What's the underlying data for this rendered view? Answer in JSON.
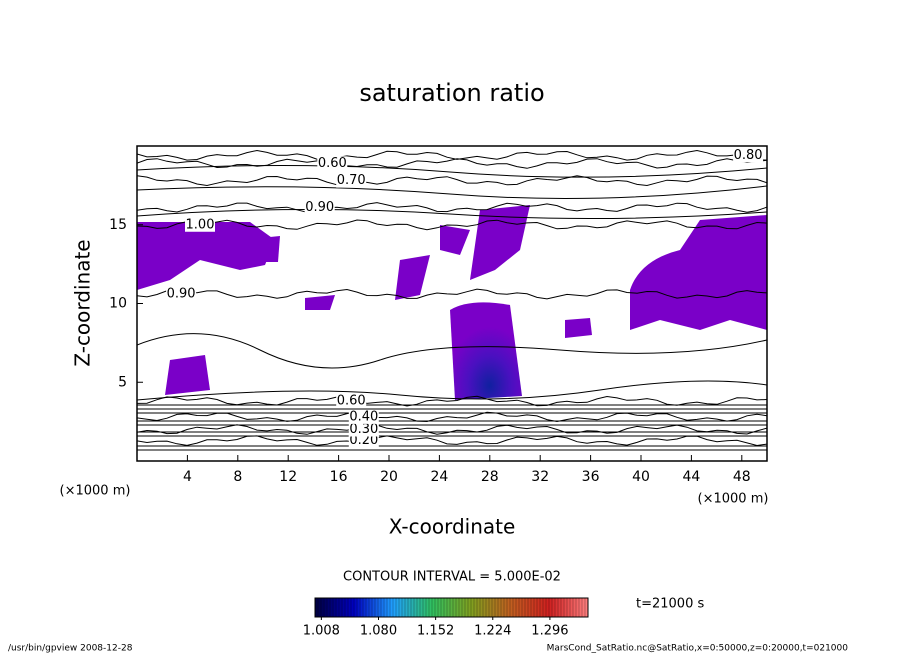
{
  "chart_data": {
    "type": "contour",
    "title": "saturation ratio",
    "xlabel": "X-coordinate",
    "ylabel": "Z-coordinate",
    "xunit": "(×1000 m)",
    "yunit": "(×1000 m)",
    "xlim": [
      0,
      50
    ],
    "xticks": [
      4,
      8,
      12,
      16,
      20,
      24,
      28,
      32,
      36,
      40,
      44,
      48
    ],
    "ylim": [
      0,
      20
    ],
    "yticks": [
      5,
      10,
      15
    ],
    "contour_interval": "CONTOUR INTERVAL = 5.000E-02",
    "fill_color": "#7a00c8",
    "contours": [
      {
        "level": 0.2,
        "label": "0.20",
        "x": 18,
        "z": 1.3
      },
      {
        "level": 0.3,
        "label": "0.30",
        "x": 18,
        "z": 2.0
      },
      {
        "level": 0.4,
        "label": "0.40",
        "x": 18,
        "z": 2.8
      },
      {
        "level": 0.6,
        "label": "0.60",
        "x": 17,
        "z": 3.8
      },
      {
        "level": 0.6,
        "label": "0.60",
        "x": 15.5,
        "z": 18.9
      },
      {
        "level": 0.7,
        "label": "0.70",
        "x": 17,
        "z": 17.8
      },
      {
        "level": 0.8,
        "label": "0.80",
        "x": 48.5,
        "z": 19.4
      },
      {
        "level": 0.9,
        "label": "0.90",
        "x": 14.5,
        "z": 16.1
      },
      {
        "level": 1.0,
        "label": "1.00",
        "x": 5,
        "z": 15.0
      },
      {
        "level": 0.9,
        "label": "0.90",
        "x": 3.5,
        "z": 10.6
      }
    ],
    "colorbar": {
      "clim": [
        1.0,
        1.344
      ],
      "colors": [
        "#000040",
        "#0000c0",
        "#20a0ff",
        "#30c060",
        "#80a020",
        "#c06020",
        "#d02020",
        "#ff8080"
      ],
      "ticks": [
        1.008,
        {
          "value": 1.08,
          "label": "1.080"
        },
        1.152,
        1.224,
        1.296
      ]
    },
    "time_label": "t=21000 s",
    "footer_left": "/usr/bin/gpview  2008-12-28",
    "footer_right": "MarsCond_SatRatio.nc@SatRatio,x=0:50000,z=0:20000,t=021000"
  }
}
